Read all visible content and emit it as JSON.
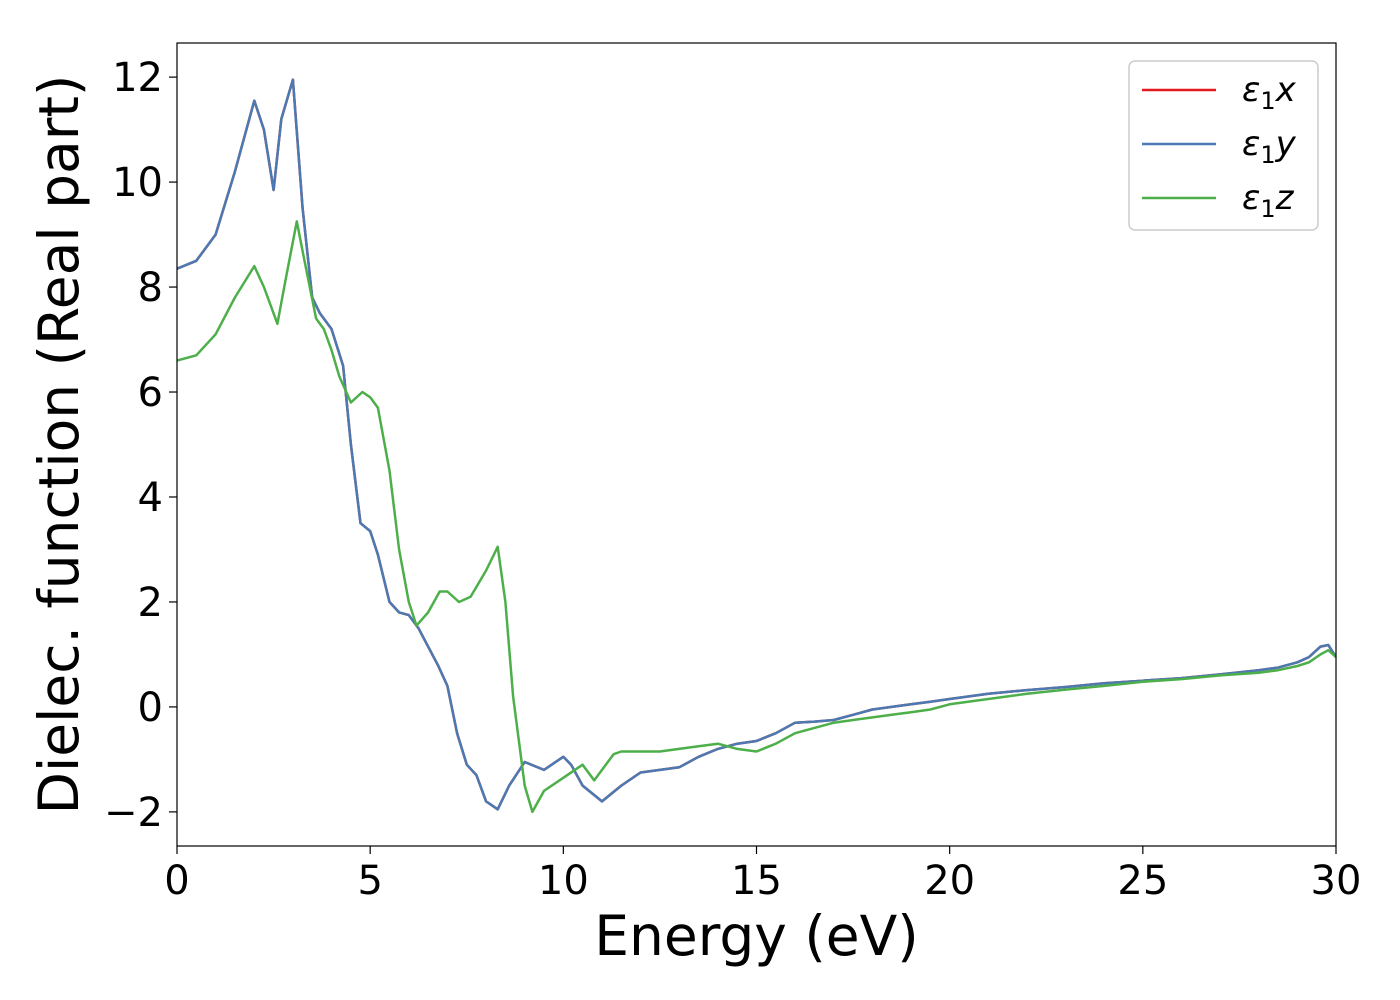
{
  "chart_data": {
    "type": "line",
    "xlabel": "Energy (eV)",
    "ylabel": "Dielec. function (Real part)",
    "xlim": [
      0,
      30
    ],
    "ylim": [
      -2.65,
      12.65
    ],
    "xticks": [
      0,
      5,
      10,
      15,
      20,
      25,
      30
    ],
    "xtick_labels": [
      "0",
      "5",
      "10",
      "15",
      "20",
      "25",
      "30"
    ],
    "yticks": [
      -2,
      0,
      2,
      4,
      6,
      8,
      10,
      12
    ],
    "ytick_labels": [
      "−2",
      "0",
      "2",
      "4",
      "6",
      "8",
      "10",
      "12"
    ],
    "grid": false,
    "legend_position": "top-right",
    "series": [
      {
        "name": "ε₁x",
        "legend_base": "ε",
        "legend_sub": "1",
        "legend_var": "x",
        "color": "#e41a1c",
        "x": [
          0,
          0.5,
          1.0,
          1.5,
          2.0,
          2.25,
          2.5,
          2.7,
          3.0,
          3.25,
          3.5,
          3.7,
          4.0,
          4.3,
          4.5,
          4.75,
          5.0,
          5.2,
          5.5,
          5.75,
          6.0,
          6.25,
          6.5,
          6.75,
          7.0,
          7.25,
          7.5,
          7.75,
          8.0,
          8.3,
          8.6,
          9.0,
          9.5,
          10.0,
          10.2,
          10.5,
          11.0,
          11.5,
          12.0,
          12.5,
          13.0,
          13.5,
          14.0,
          14.5,
          15.0,
          15.5,
          16.0,
          16.5,
          17.0,
          17.5,
          18.0,
          18.5,
          19.0,
          19.5,
          20.0,
          21.0,
          22.0,
          23.0,
          24.0,
          25.0,
          26.0,
          27.0,
          28.0,
          28.5,
          29.0,
          29.3,
          29.6,
          29.8,
          30.0
        ],
        "values": [
          8.35,
          8.5,
          9.0,
          10.2,
          11.55,
          11.0,
          9.85,
          11.2,
          11.95,
          9.5,
          7.8,
          7.5,
          7.2,
          6.5,
          5.0,
          3.5,
          3.35,
          2.9,
          2.0,
          1.8,
          1.75,
          1.5,
          1.15,
          0.8,
          0.4,
          -0.5,
          -1.1,
          -1.3,
          -1.8,
          -1.95,
          -1.5,
          -1.05,
          -1.2,
          -0.95,
          -1.1,
          -1.5,
          -1.8,
          -1.5,
          -1.25,
          -1.2,
          -1.15,
          -0.95,
          -0.8,
          -0.7,
          -0.65,
          -0.5,
          -0.3,
          -0.28,
          -0.25,
          -0.15,
          -0.05,
          0.0,
          0.05,
          0.1,
          0.15,
          0.25,
          0.32,
          0.38,
          0.45,
          0.5,
          0.55,
          0.62,
          0.7,
          0.75,
          0.85,
          0.95,
          1.15,
          1.18,
          0.95
        ]
      },
      {
        "name": "ε₁y",
        "legend_base": "ε",
        "legend_sub": "1",
        "legend_var": "y",
        "color": "#4a7ab1",
        "x": [
          0,
          0.5,
          1.0,
          1.5,
          2.0,
          2.25,
          2.5,
          2.7,
          3.0,
          3.25,
          3.5,
          3.7,
          4.0,
          4.3,
          4.5,
          4.75,
          5.0,
          5.2,
          5.5,
          5.75,
          6.0,
          6.25,
          6.5,
          6.75,
          7.0,
          7.25,
          7.5,
          7.75,
          8.0,
          8.3,
          8.6,
          9.0,
          9.5,
          10.0,
          10.2,
          10.5,
          11.0,
          11.5,
          12.0,
          12.5,
          13.0,
          13.5,
          14.0,
          14.5,
          15.0,
          15.5,
          16.0,
          16.5,
          17.0,
          17.5,
          18.0,
          18.5,
          19.0,
          19.5,
          20.0,
          21.0,
          22.0,
          23.0,
          24.0,
          25.0,
          26.0,
          27.0,
          28.0,
          28.5,
          29.0,
          29.3,
          29.6,
          29.8,
          30.0
        ],
        "values": [
          8.35,
          8.5,
          9.0,
          10.2,
          11.55,
          11.0,
          9.85,
          11.2,
          11.95,
          9.5,
          7.8,
          7.5,
          7.2,
          6.5,
          5.0,
          3.5,
          3.35,
          2.9,
          2.0,
          1.8,
          1.75,
          1.5,
          1.15,
          0.8,
          0.4,
          -0.5,
          -1.1,
          -1.3,
          -1.8,
          -1.95,
          -1.5,
          -1.05,
          -1.2,
          -0.95,
          -1.1,
          -1.5,
          -1.8,
          -1.5,
          -1.25,
          -1.2,
          -1.15,
          -0.95,
          -0.8,
          -0.7,
          -0.65,
          -0.5,
          -0.3,
          -0.28,
          -0.25,
          -0.15,
          -0.05,
          0.0,
          0.05,
          0.1,
          0.15,
          0.25,
          0.32,
          0.38,
          0.45,
          0.5,
          0.55,
          0.62,
          0.7,
          0.75,
          0.85,
          0.95,
          1.15,
          1.18,
          0.95
        ]
      },
      {
        "name": "ε₁z",
        "legend_base": "ε",
        "legend_sub": "1",
        "legend_var": "z",
        "color": "#4daf4a",
        "x": [
          0,
          0.5,
          1.0,
          1.5,
          2.0,
          2.25,
          2.6,
          2.8,
          3.1,
          3.3,
          3.6,
          3.8,
          4.0,
          4.2,
          4.5,
          4.8,
          5.0,
          5.2,
          5.5,
          5.75,
          6.0,
          6.2,
          6.5,
          6.8,
          7.0,
          7.3,
          7.6,
          8.0,
          8.3,
          8.5,
          8.7,
          9.0,
          9.2,
          9.5,
          10.0,
          10.5,
          10.8,
          11.0,
          11.3,
          11.5,
          12.0,
          12.5,
          13.0,
          13.5,
          14.0,
          14.5,
          15.0,
          15.5,
          16.0,
          16.5,
          17.0,
          17.5,
          18.0,
          18.5,
          19.0,
          19.5,
          20.0,
          21.0,
          22.0,
          23.0,
          24.0,
          25.0,
          26.0,
          27.0,
          28.0,
          28.5,
          29.0,
          29.3,
          29.6,
          29.8,
          30.0
        ],
        "values": [
          6.6,
          6.7,
          7.1,
          7.8,
          8.4,
          8.0,
          7.3,
          8.1,
          9.25,
          8.5,
          7.4,
          7.2,
          6.8,
          6.3,
          5.8,
          6.0,
          5.9,
          5.7,
          4.5,
          3.0,
          2.0,
          1.55,
          1.8,
          2.2,
          2.2,
          2.0,
          2.1,
          2.6,
          3.05,
          2.0,
          0.2,
          -1.5,
          -2.0,
          -1.6,
          -1.35,
          -1.1,
          -1.4,
          -1.2,
          -0.9,
          -0.85,
          -0.85,
          -0.85,
          -0.8,
          -0.75,
          -0.7,
          -0.8,
          -0.85,
          -0.7,
          -0.5,
          -0.4,
          -0.3,
          -0.25,
          -0.2,
          -0.15,
          -0.1,
          -0.05,
          0.05,
          0.15,
          0.25,
          0.33,
          0.4,
          0.48,
          0.53,
          0.6,
          0.65,
          0.7,
          0.78,
          0.85,
          1.0,
          1.08,
          0.95
        ]
      }
    ]
  }
}
